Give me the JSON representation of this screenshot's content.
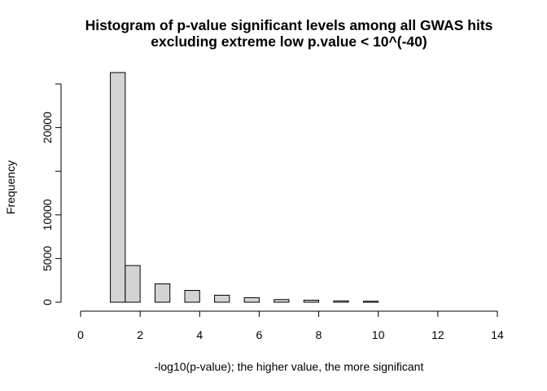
{
  "chart_data": {
    "type": "bar",
    "title": "Histogram of p-value significant levels among all GWAS hits",
    "subtitle": "excluding extreme low p.value < 10^(-40)",
    "xlabel": "-log10(p-value); the higher value, the more significant",
    "ylabel": "Frequency",
    "xlim": [
      0,
      14
    ],
    "ylim": [
      0,
      25000
    ],
    "x_ticks": [
      0,
      2,
      4,
      6,
      8,
      10,
      12,
      14
    ],
    "x_tick_labels": [
      "0",
      "2",
      "4",
      "6",
      "8",
      "10",
      "12",
      "14"
    ],
    "y_ticks": [
      0,
      5000,
      10000,
      15000,
      20000,
      25000
    ],
    "y_tick_labels": [
      "0",
      "5000",
      "10000",
      "",
      "20000",
      ""
    ],
    "bins": [
      {
        "x0": 1.0,
        "x1": 1.5,
        "count": 26300
      },
      {
        "x0": 1.5,
        "x1": 2.0,
        "count": 4200
      },
      {
        "x0": 2.0,
        "x1": 2.5,
        "count": 0
      },
      {
        "x0": 2.5,
        "x1": 3.0,
        "count": 2100
      },
      {
        "x0": 3.0,
        "x1": 3.5,
        "count": 0
      },
      {
        "x0": 3.5,
        "x1": 4.0,
        "count": 1350
      },
      {
        "x0": 4.0,
        "x1": 4.5,
        "count": 0
      },
      {
        "x0": 4.5,
        "x1": 5.0,
        "count": 800
      },
      {
        "x0": 5.0,
        "x1": 5.5,
        "count": 0
      },
      {
        "x0": 5.5,
        "x1": 6.0,
        "count": 520
      },
      {
        "x0": 6.0,
        "x1": 6.5,
        "count": 0
      },
      {
        "x0": 6.5,
        "x1": 7.0,
        "count": 300
      },
      {
        "x0": 7.0,
        "x1": 7.5,
        "count": 0
      },
      {
        "x0": 7.5,
        "x1": 8.0,
        "count": 230
      },
      {
        "x0": 8.0,
        "x1": 8.5,
        "count": 0
      },
      {
        "x0": 8.5,
        "x1": 9.0,
        "count": 150
      },
      {
        "x0": 9.0,
        "x1": 9.5,
        "count": 0
      },
      {
        "x0": 9.5,
        "x1": 10.0,
        "count": 110
      }
    ],
    "bar_fill": "#d3d3d3",
    "bar_stroke": "#000000",
    "grid": false,
    "legend": "none"
  }
}
